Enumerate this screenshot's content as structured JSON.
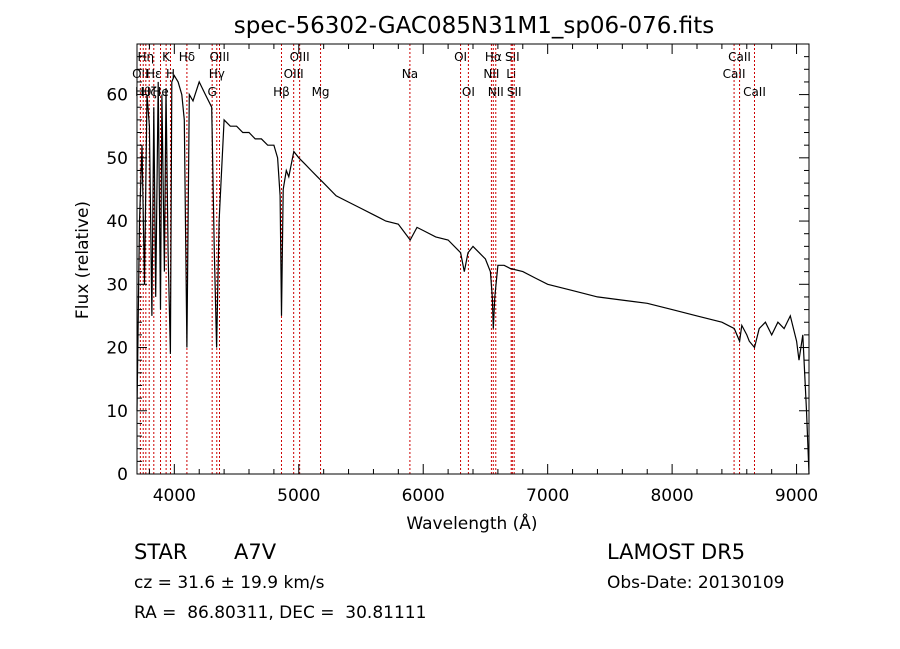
{
  "chart_data": {
    "type": "line",
    "title": "spec-56302-GAC085N31M1_sp06-076.fits",
    "xlabel": "Wavelength (Å)",
    "ylabel": "Flux (relative)",
    "xlim": [
      3700,
      9100
    ],
    "ylim": [
      0,
      68
    ],
    "xticks": [
      4000,
      5000,
      6000,
      7000,
      8000,
      9000
    ],
    "yticks": [
      0,
      10,
      20,
      30,
      40,
      50,
      60
    ],
    "grid": false,
    "line_color": "#000000",
    "marker_color": "#cc0000",
    "series": [
      {
        "x": [
          3700,
          3720,
          3740,
          3760,
          3780,
          3800,
          3820,
          3835,
          3850,
          3870,
          3889,
          3900,
          3920,
          3933,
          3950,
          3968,
          3980,
          4000,
          4030,
          4060,
          4080,
          4101,
          4120,
          4150,
          4200,
          4250,
          4300,
          4320,
          4340,
          4360,
          4400,
          4450,
          4500,
          4550,
          4600,
          4650,
          4700,
          4750,
          4800,
          4830,
          4850,
          4861,
          4875,
          4900,
          4920,
          4940,
          4960,
          5000,
          5050,
          5100,
          5150,
          5200,
          5300,
          5400,
          5500,
          5600,
          5700,
          5800,
          5895,
          5950,
          6000,
          6100,
          6200,
          6300,
          6330,
          6360,
          6400,
          6450,
          6500,
          6540,
          6555,
          6563,
          6575,
          6600,
          6650,
          6700,
          6800,
          6900,
          7000,
          7200,
          7400,
          7600,
          7800,
          8000,
          8200,
          8400,
          8500,
          8542,
          8560,
          8600,
          8620,
          8662,
          8700,
          8750,
          8800,
          8850,
          8900,
          8950,
          9000,
          9020,
          9050,
          9080,
          9100
        ],
        "y": [
          10,
          40,
          52,
          30,
          60,
          55,
          25,
          58,
          28,
          62,
          26,
          60,
          32,
          61,
          35,
          19,
          62,
          63,
          62,
          60,
          56,
          20,
          60,
          59,
          62,
          60,
          58,
          36,
          20,
          40,
          56,
          55,
          55,
          54,
          54,
          53,
          53,
          52,
          52,
          50,
          44,
          25,
          45,
          48,
          47,
          49,
          51,
          50,
          49,
          48,
          47,
          46,
          44,
          43,
          42,
          41,
          40,
          39.5,
          37,
          39,
          38.5,
          37.5,
          37,
          35,
          32,
          35,
          36,
          35,
          34,
          32,
          28,
          23,
          28,
          33,
          33,
          32.5,
          32,
          31,
          30,
          29,
          28,
          27.5,
          27,
          26,
          25,
          24,
          23,
          21,
          23.5,
          22,
          21,
          20,
          23,
          24,
          22,
          24,
          23,
          25,
          21,
          18,
          22,
          10,
          0
        ]
      }
    ],
    "lines": [
      {
        "x": 3727,
        "label": "OII",
        "row": 2
      },
      {
        "x": 3750,
        "label": "Hθ",
        "row": 3
      },
      {
        "x": 3771,
        "label": "Hη",
        "row": 1
      },
      {
        "x": 3798,
        "label": "Hζ",
        "row": 3
      },
      {
        "x": 3835,
        "label": "Hε",
        "row": 2
      },
      {
        "x": 3889,
        "label": "He",
        "row": 3
      },
      {
        "x": 3934,
        "label": "K",
        "row": 1
      },
      {
        "x": 3969,
        "label": "H",
        "row": 2
      },
      {
        "x": 4101,
        "label": "Hδ",
        "row": 1
      },
      {
        "x": 4304,
        "label": "G",
        "row": 3
      },
      {
        "x": 4341,
        "label": "Hγ",
        "row": 2
      },
      {
        "x": 4363,
        "label": "OIII",
        "row": 1
      },
      {
        "x": 4861,
        "label": "Hβ",
        "row": 3
      },
      {
        "x": 4959,
        "label": "OIII",
        "row": 2
      },
      {
        "x": 5007,
        "label": "OIII",
        "row": 1
      },
      {
        "x": 5175,
        "label": "Mg",
        "row": 3
      },
      {
        "x": 5893,
        "label": "Na",
        "row": 2
      },
      {
        "x": 6300,
        "label": "OI",
        "row": 1
      },
      {
        "x": 6363,
        "label": "OI",
        "row": 3
      },
      {
        "x": 6548,
        "label": "NII",
        "row": 2
      },
      {
        "x": 6563,
        "label": "Hα",
        "row": 1
      },
      {
        "x": 6583,
        "label": "NII",
        "row": 3
      },
      {
        "x": 6707,
        "label": "Li",
        "row": 2
      },
      {
        "x": 6716,
        "label": "SII",
        "row": 1
      },
      {
        "x": 6731,
        "label": "SII",
        "row": 3
      },
      {
        "x": 8498,
        "label": "CaII",
        "row": 2
      },
      {
        "x": 8542,
        "label": "CaII",
        "row": 1
      },
      {
        "x": 8662,
        "label": "CaII",
        "row": 3
      }
    ]
  },
  "info": {
    "class_label": "STAR",
    "subclass": "A7V",
    "survey": "LAMOST DR5",
    "cz": "cz = 31.6 ± 19.9 km/s",
    "obs_date": "Obs-Date: 20130109",
    "coords": "RA =  86.80311, DEC =  30.81111"
  }
}
